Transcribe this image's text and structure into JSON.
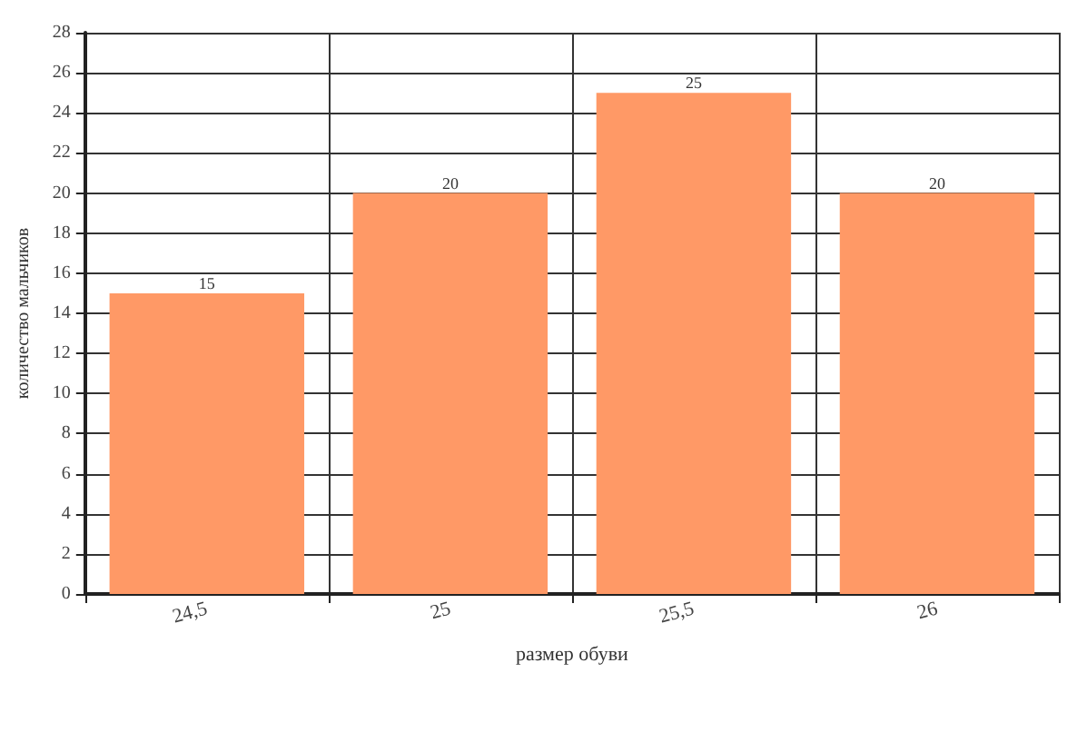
{
  "chart_data": {
    "type": "bar",
    "xlabel": "размер обуви",
    "ylabel": "количество мальчиков",
    "categories": [
      "24,5",
      "25",
      "25,5",
      "26"
    ],
    "values": [
      15,
      20,
      25,
      20
    ],
    "color": "#ff9966",
    "ylim": [
      0,
      28
    ],
    "yticks": [
      0,
      2,
      4,
      6,
      8,
      10,
      12,
      14,
      16,
      18,
      20,
      22,
      24,
      26,
      28
    ],
    "grid": true,
    "data_labels": true
  }
}
